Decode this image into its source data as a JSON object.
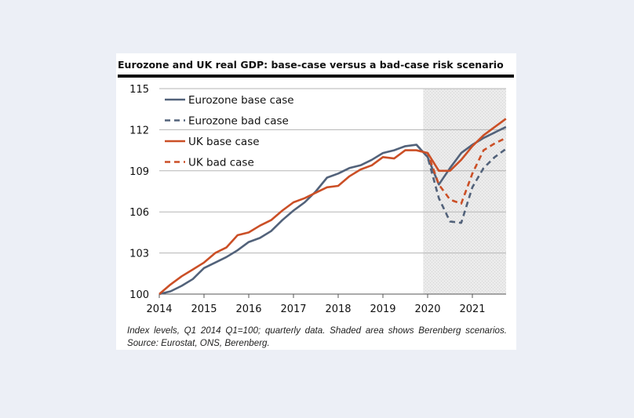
{
  "title": "Eurozone and UK real GDP: base-case versus a bad-case risk scenario",
  "caption": "Index levels, Q1 2014 Q1=100; quarterly data. Shaded area shows Berenberg scenarios. Source: Eurostat, ONS, Berenberg.",
  "chart_data": {
    "type": "line",
    "ylim": [
      100,
      115
    ],
    "yticks": [
      100,
      103,
      106,
      109,
      112,
      115
    ],
    "xlim": [
      2014,
      2021.75
    ],
    "xticks": [
      2014,
      2015,
      2016,
      2017,
      2018,
      2019,
      2020,
      2021
    ],
    "shaded_from": 2019.9,
    "grid": "horizontal",
    "legend_position": "top-left",
    "colors": {
      "eurozone": "#52627a",
      "uk": "#cb4f26",
      "grid": "#b5b5b5",
      "shade": "#ebebeb"
    },
    "series": [
      {
        "name": "Eurozone base case",
        "color": "#52627a",
        "dash": "solid",
        "points": [
          [
            2014.0,
            100.0
          ],
          [
            2014.25,
            100.2
          ],
          [
            2014.5,
            100.6
          ],
          [
            2014.75,
            101.1
          ],
          [
            2015.0,
            101.9
          ],
          [
            2015.25,
            102.3
          ],
          [
            2015.5,
            102.7
          ],
          [
            2015.75,
            103.2
          ],
          [
            2016.0,
            103.8
          ],
          [
            2016.25,
            104.1
          ],
          [
            2016.5,
            104.6
          ],
          [
            2016.75,
            105.4
          ],
          [
            2017.0,
            106.1
          ],
          [
            2017.25,
            106.7
          ],
          [
            2017.5,
            107.5
          ],
          [
            2017.75,
            108.5
          ],
          [
            2018.0,
            108.8
          ],
          [
            2018.25,
            109.2
          ],
          [
            2018.5,
            109.4
          ],
          [
            2018.75,
            109.8
          ],
          [
            2019.0,
            110.3
          ],
          [
            2019.25,
            110.5
          ],
          [
            2019.5,
            110.8
          ],
          [
            2019.75,
            110.9
          ],
          [
            2020.0,
            110.0
          ],
          [
            2020.25,
            108.0
          ],
          [
            2020.5,
            109.2
          ],
          [
            2020.75,
            110.3
          ],
          [
            2021.0,
            110.9
          ],
          [
            2021.25,
            111.4
          ],
          [
            2021.5,
            111.8
          ],
          [
            2021.75,
            112.2
          ]
        ]
      },
      {
        "name": "Eurozone bad case",
        "color": "#52627a",
        "dash": "dashed",
        "points": [
          [
            2019.75,
            110.9
          ],
          [
            2020.0,
            110.0
          ],
          [
            2020.25,
            107.0
          ],
          [
            2020.5,
            105.3
          ],
          [
            2020.75,
            105.2
          ],
          [
            2021.0,
            107.8
          ],
          [
            2021.25,
            109.2
          ],
          [
            2021.5,
            110.0
          ],
          [
            2021.75,
            110.6
          ]
        ]
      },
      {
        "name": "UK base case",
        "color": "#cb4f26",
        "dash": "solid",
        "points": [
          [
            2014.0,
            100.0
          ],
          [
            2014.25,
            100.7
          ],
          [
            2014.5,
            101.3
          ],
          [
            2014.75,
            101.8
          ],
          [
            2015.0,
            102.3
          ],
          [
            2015.25,
            103.0
          ],
          [
            2015.5,
            103.4
          ],
          [
            2015.75,
            104.3
          ],
          [
            2016.0,
            104.5
          ],
          [
            2016.25,
            105.0
          ],
          [
            2016.5,
            105.4
          ],
          [
            2016.75,
            106.1
          ],
          [
            2017.0,
            106.7
          ],
          [
            2017.25,
            107.0
          ],
          [
            2017.5,
            107.4
          ],
          [
            2017.75,
            107.8
          ],
          [
            2018.0,
            107.9
          ],
          [
            2018.25,
            108.6
          ],
          [
            2018.5,
            109.1
          ],
          [
            2018.75,
            109.4
          ],
          [
            2019.0,
            110.0
          ],
          [
            2019.25,
            109.9
          ],
          [
            2019.5,
            110.5
          ],
          [
            2019.75,
            110.5
          ],
          [
            2020.0,
            110.3
          ],
          [
            2020.25,
            109.0
          ],
          [
            2020.5,
            109.0
          ],
          [
            2020.75,
            109.8
          ],
          [
            2021.0,
            110.8
          ],
          [
            2021.25,
            111.6
          ],
          [
            2021.5,
            112.2
          ],
          [
            2021.75,
            112.8
          ]
        ]
      },
      {
        "name": "UK bad case",
        "color": "#cb4f26",
        "dash": "dashed",
        "points": [
          [
            2019.75,
            110.5
          ],
          [
            2020.0,
            110.3
          ],
          [
            2020.25,
            108.0
          ],
          [
            2020.5,
            106.9
          ],
          [
            2020.75,
            106.6
          ],
          [
            2021.0,
            108.8
          ],
          [
            2021.25,
            110.5
          ],
          [
            2021.5,
            111.0
          ],
          [
            2021.75,
            111.4
          ]
        ]
      }
    ]
  }
}
